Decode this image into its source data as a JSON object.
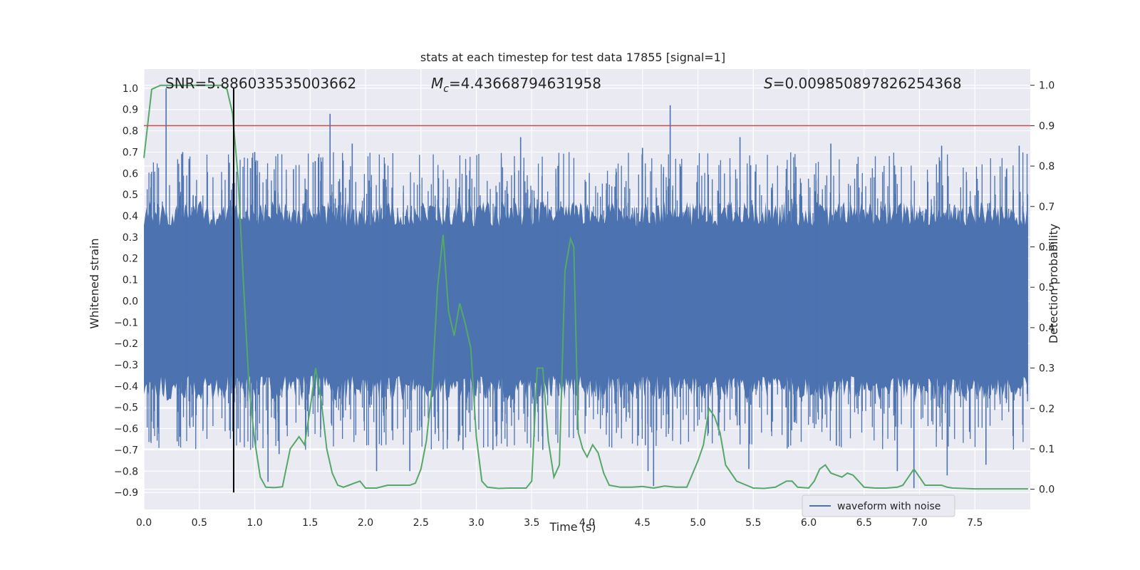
{
  "chart_data": {
    "type": "line",
    "title": "stats at each timestep for test data 17855 [signal=1]",
    "xlabel": "Time (s)",
    "ylabel_left": "Whitened strain",
    "ylabel_right": "Detection probability",
    "xlim": [
      0.0,
      8.0
    ],
    "ylim_left": [
      -0.98,
      1.09
    ],
    "ylim_right": [
      -0.05,
      1.04
    ],
    "xticks": [
      "0.0",
      "0.5",
      "1.0",
      "1.5",
      "2.0",
      "2.5",
      "3.0",
      "3.5",
      "4.0",
      "4.5",
      "5.0",
      "5.5",
      "6.0",
      "6.5",
      "7.0",
      "7.5"
    ],
    "yticks_left": [
      "1.0",
      "0.9",
      "0.8",
      "0.7",
      "0.6",
      "0.5",
      "0.4",
      "0.3",
      "0.2",
      "0.1",
      "0.0",
      "−0.1",
      "−0.2",
      "−0.3",
      "−0.4",
      "−0.5",
      "−0.6",
      "−0.7",
      "−0.8",
      "−0.9"
    ],
    "yticks_right": [
      "1.0",
      "0.9",
      "0.8",
      "0.7",
      "0.6",
      "0.5",
      "0.4",
      "0.3",
      "0.2",
      "0.1",
      "0.0"
    ],
    "grid": true,
    "legend": {
      "position": "lower-right",
      "entries": [
        "waveform with noise"
      ]
    },
    "annotations": {
      "snr": "SNR=5.886033535003662",
      "mc_symbol": "M",
      "mc_sub": "c",
      "mc_value": "=4.43668794631958",
      "s_symbol": "S",
      "s_value": "=0.009850897826254368"
    },
    "waveform": {
      "name": "waveform with noise",
      "color": "#4c72b0",
      "envelope": 0.35,
      "spikes": [
        [
          0.2,
          1.0
        ],
        [
          1.68,
          0.88
        ],
        [
          4.75,
          0.92
        ],
        [
          0.35,
          0.7
        ],
        [
          1.0,
          0.7
        ],
        [
          1.88,
          0.74
        ],
        [
          3.4,
          0.77
        ],
        [
          4.5,
          0.72
        ],
        [
          5.38,
          0.77
        ],
        [
          6.2,
          0.74
        ],
        [
          7.2,
          0.73
        ],
        [
          7.9,
          0.73
        ],
        [
          1.35,
          0.62
        ],
        [
          1.12,
          -0.85
        ],
        [
          2.1,
          -0.8
        ],
        [
          4.6,
          -0.87
        ],
        [
          6.8,
          -0.8
        ],
        [
          7.25,
          -0.82
        ],
        [
          0.3,
          -0.66
        ],
        [
          1.22,
          -0.72
        ],
        [
          2.4,
          -0.8
        ],
        [
          3.6,
          -0.7
        ],
        [
          4.55,
          -0.8
        ],
        [
          5.46,
          -0.79
        ],
        [
          6.95,
          -0.88
        ],
        [
          7.6,
          -0.77
        ],
        [
          2.88,
          -0.7
        ],
        [
          0.85,
          -0.6
        ],
        [
          3.15,
          -0.7
        ],
        [
          6.25,
          -0.68
        ]
      ]
    },
    "probability": {
      "color": "#55a868",
      "x": [
        0.0,
        0.07,
        0.15,
        0.25,
        0.5,
        0.7,
        0.75,
        0.8,
        0.85,
        0.9,
        0.95,
        1.0,
        1.05,
        1.1,
        1.18,
        1.25,
        1.32,
        1.4,
        1.45,
        1.5,
        1.55,
        1.6,
        1.65,
        1.7,
        1.75,
        1.8,
        1.85,
        1.9,
        1.95,
        2.0,
        2.1,
        2.2,
        2.3,
        2.4,
        2.45,
        2.5,
        2.55,
        2.6,
        2.65,
        2.7,
        2.75,
        2.8,
        2.85,
        2.9,
        2.95,
        3.0,
        3.05,
        3.1,
        3.2,
        3.3,
        3.4,
        3.45,
        3.5,
        3.55,
        3.6,
        3.65,
        3.7,
        3.75,
        3.8,
        3.85,
        3.88,
        3.92,
        3.96,
        4.0,
        4.05,
        4.1,
        4.15,
        4.2,
        4.3,
        4.4,
        4.5,
        4.6,
        4.7,
        4.8,
        4.9,
        5.0,
        5.05,
        5.1,
        5.15,
        5.2,
        5.25,
        5.35,
        5.5,
        5.6,
        5.7,
        5.8,
        5.85,
        5.9,
        6.0,
        6.05,
        6.1,
        6.15,
        6.2,
        6.25,
        6.3,
        6.35,
        6.4,
        6.45,
        6.5,
        6.6,
        6.7,
        6.8,
        6.85,
        6.9,
        6.95,
        7.0,
        7.05,
        7.1,
        7.2,
        7.25,
        7.3,
        7.5,
        7.7,
        7.98
      ],
      "y": [
        0.82,
        0.99,
        1.0,
        1.0,
        1.0,
        1.0,
        0.99,
        0.93,
        0.77,
        0.5,
        0.25,
        0.12,
        0.03,
        0.005,
        0.004,
        0.006,
        0.1,
        0.13,
        0.11,
        0.2,
        0.3,
        0.22,
        0.1,
        0.04,
        0.01,
        0.005,
        0.01,
        0.015,
        0.02,
        0.003,
        0.003,
        0.01,
        0.01,
        0.01,
        0.015,
        0.05,
        0.12,
        0.25,
        0.5,
        0.63,
        0.44,
        0.38,
        0.46,
        0.41,
        0.35,
        0.13,
        0.02,
        0.005,
        0.002,
        0.003,
        0.003,
        0.003,
        0.02,
        0.3,
        0.3,
        0.12,
        0.03,
        0.06,
        0.54,
        0.62,
        0.6,
        0.14,
        0.1,
        0.08,
        0.11,
        0.09,
        0.04,
        0.01,
        0.005,
        0.005,
        0.007,
        0.003,
        0.008,
        0.005,
        0.005,
        0.07,
        0.11,
        0.2,
        0.18,
        0.14,
        0.06,
        0.02,
        0.003,
        0.002,
        0.005,
        0.02,
        0.02,
        0.005,
        0.003,
        0.02,
        0.05,
        0.06,
        0.04,
        0.035,
        0.03,
        0.04,
        0.035,
        0.02,
        0.005,
        0.003,
        0.003,
        0.005,
        0.01,
        0.03,
        0.05,
        0.03,
        0.01,
        0.01,
        0.01,
        0.005,
        0.003,
        0.001,
        0.001,
        0.001
      ]
    },
    "threshold": {
      "value_right": 0.9,
      "color": "#c44e52"
    },
    "marker": {
      "x": 0.81,
      "y_from": -0.9,
      "y_to": 1.0,
      "color": "#000000"
    }
  }
}
